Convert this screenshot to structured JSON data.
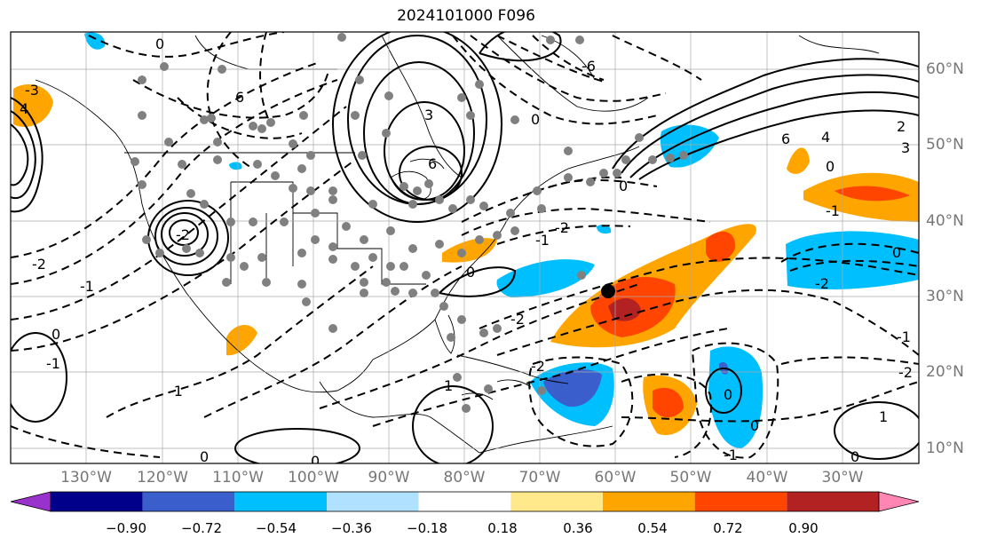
{
  "title": "2024101000 F096",
  "longitude_labels": [
    "130°W",
    "120°W",
    "110°W",
    "100°W",
    "90°W",
    "80°W",
    "70°W",
    "60°W",
    "50°W",
    "40°W",
    "30°W"
  ],
  "latitude_labels": [
    "60°N",
    "50°N",
    "40°N",
    "30°N",
    "20°N",
    "10°N"
  ],
  "contour_labels": [
    "-6",
    "-4",
    "-3",
    "-2",
    "-1",
    "0",
    "1",
    "2",
    "3",
    "4",
    "6"
  ],
  "colorbar": {
    "ticks": [
      "−0.90",
      "−0.72",
      "−0.54",
      "−0.36",
      "−0.18",
      "0.18",
      "0.36",
      "0.54",
      "0.72",
      "0.90"
    ],
    "colors": [
      "#9932cc",
      "#00008b",
      "#3a5fcd",
      "#00bfff",
      "#b0e2ff",
      "#ffffff",
      "#ffe98a",
      "#ffa500",
      "#ff4500",
      "#b22222",
      "#ff85b4"
    ],
    "extend": "both"
  },
  "storm_marker": "black-dot"
}
